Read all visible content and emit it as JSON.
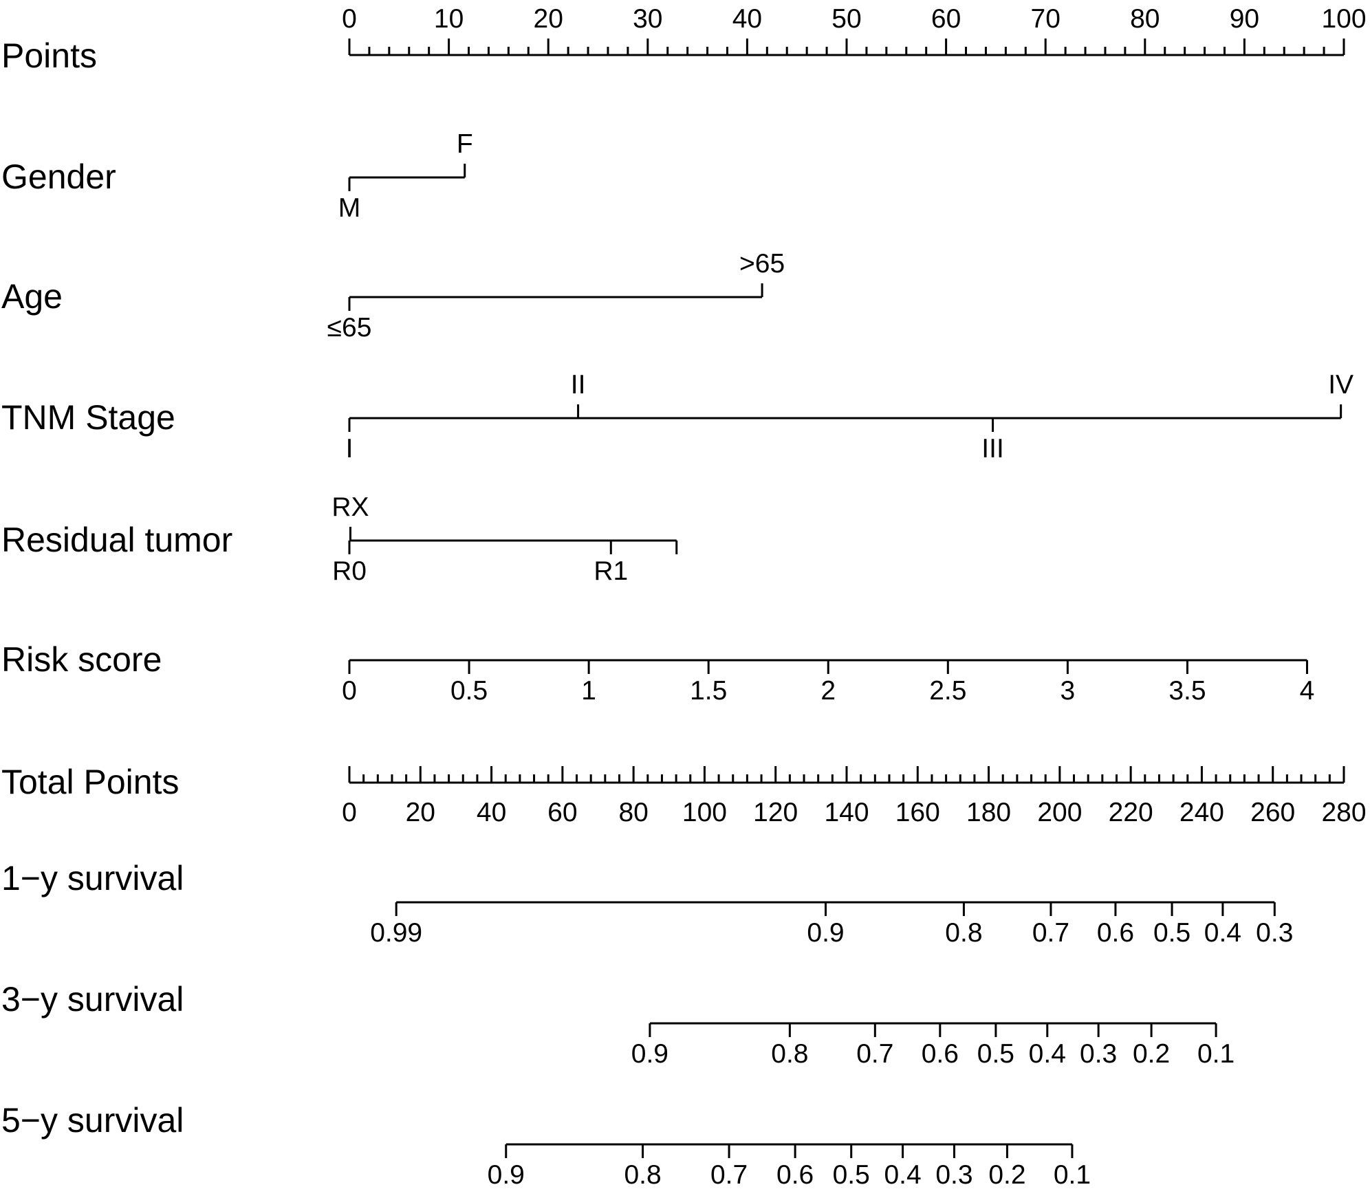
{
  "chart_data": {
    "type": "nomogram",
    "points_scale": {
      "label": "Points",
      "min": 0,
      "max": 100,
      "major_step": 10,
      "minor_step": 2
    },
    "variables": [
      {
        "name": "Gender",
        "levels": [
          {
            "label": "M",
            "points": 0,
            "label_side": "below"
          },
          {
            "label": "F",
            "points": 11.6,
            "label_side": "above"
          }
        ]
      },
      {
        "name": "Age",
        "levels": [
          {
            "label": "≤65",
            "points": 0,
            "label_side": "below"
          },
          {
            "label": ">65",
            "points": 41.5,
            "label_side": "above"
          }
        ]
      },
      {
        "name": "TNM Stage",
        "levels": [
          {
            "label": "I",
            "points": 0,
            "label_side": "below"
          },
          {
            "label": "II",
            "points": 23.0,
            "label_side": "above"
          },
          {
            "label": "III",
            "points": 64.7,
            "label_side": "below"
          },
          {
            "label": "IV",
            "points": 99.7,
            "label_side": "above"
          }
        ]
      },
      {
        "name": "Residual tumor",
        "levels": [
          {
            "label": "R0",
            "points": 0,
            "label_side": "below"
          },
          {
            "label": "RX",
            "points": 0.1,
            "label_side": "above"
          },
          {
            "label": "R1",
            "points": 26.3,
            "label_side": "below"
          },
          {
            "label": "",
            "points": 32.9,
            "label_side": "below"
          }
        ]
      }
    ],
    "risk_score": {
      "label": "Risk score",
      "min": 0,
      "max": 4,
      "points_at_min": 0,
      "points_at_max": 96.3,
      "ticks": [
        "0",
        "0.5",
        "1",
        "1.5",
        "2",
        "2.5",
        "3",
        "3.5",
        "4"
      ]
    },
    "total_points": {
      "label": "Total Points",
      "min": 0,
      "max": 280,
      "major_step": 20,
      "minor_step": 4
    },
    "survival": [
      {
        "name": "1−y survival",
        "axis_total_points": [
          13.2,
          260.5
        ],
        "ticks": [
          {
            "label": "0.99",
            "total_points": 13.2
          },
          {
            "label": "0.9",
            "total_points": 134.1
          },
          {
            "label": "0.8",
            "total_points": 173.0
          },
          {
            "label": "0.7",
            "total_points": 197.5
          },
          {
            "label": "0.6",
            "total_points": 215.7
          },
          {
            "label": "0.5",
            "total_points": 231.6
          },
          {
            "label": "0.4",
            "total_points": 245.9
          },
          {
            "label": "0.3",
            "total_points": 260.5
          }
        ]
      },
      {
        "name": "3−y survival",
        "axis_total_points": [
          84.6,
          244.0
        ],
        "ticks": [
          {
            "label": "0.9",
            "total_points": 84.6
          },
          {
            "label": "0.8",
            "total_points": 124.0
          },
          {
            "label": "0.7",
            "total_points": 148.0
          },
          {
            "label": "0.6",
            "total_points": 166.3
          },
          {
            "label": "0.5",
            "total_points": 182.0
          },
          {
            "label": "0.4",
            "total_points": 196.5
          },
          {
            "label": "0.3",
            "total_points": 210.9
          },
          {
            "label": "0.2",
            "total_points": 225.8
          },
          {
            "label": "0.1",
            "total_points": 244.0
          }
        ]
      },
      {
        "name": "5−y survival",
        "axis_total_points": [
          44.1,
          203.5
        ],
        "ticks": [
          {
            "label": "0.9",
            "total_points": 44.1
          },
          {
            "label": "0.8",
            "total_points": 82.6
          },
          {
            "label": "0.7",
            "total_points": 106.9
          },
          {
            "label": "0.6",
            "total_points": 125.5
          },
          {
            "label": "0.5",
            "total_points": 141.3
          },
          {
            "label": "0.4",
            "total_points": 155.8
          },
          {
            "label": "0.3",
            "total_points": 170.3
          },
          {
            "label": "0.2",
            "total_points": 185.2
          },
          {
            "label": "0.1",
            "total_points": 203.5
          }
        ]
      }
    ]
  }
}
